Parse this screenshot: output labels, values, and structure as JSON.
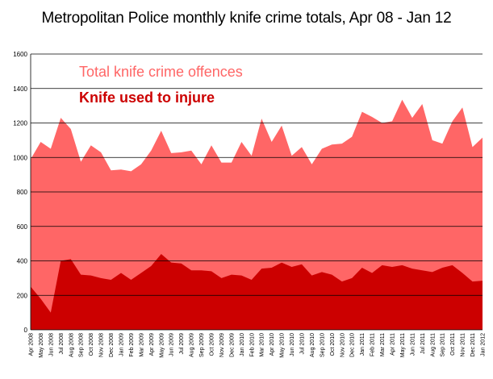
{
  "chart_data": {
    "type": "area",
    "title": "Metropolitan Police monthly knife crime totals, Apr 08 - Jan 12",
    "xlabel": "",
    "ylabel": "",
    "ylim": [
      0,
      1600
    ],
    "yticks": [
      0,
      200,
      400,
      600,
      800,
      1000,
      1200,
      1400,
      1600
    ],
    "grid": true,
    "legend_position": "top-left",
    "categories": [
      "Apr 2008",
      "May 2008",
      "Jun 2008",
      "Jul 2008",
      "Aug 2008",
      "Sep 2008",
      "Oct 2008",
      "Nov 2008",
      "Dec 2008",
      "Jan 2009",
      "Feb 2009",
      "Mar 2009",
      "Apr 2009",
      "May 2009",
      "Jun 2009",
      "Jul 2009",
      "Aug 2009",
      "Sep 2009",
      "Oct 2009",
      "Nov 2009",
      "Dec 2009",
      "Jan 2010",
      "Feb 2010",
      "Mar 2010",
      "Apr 2010",
      "May 2010",
      "Jun 2010",
      "Jul 2010",
      "Aug 2010",
      "Sep 2010",
      "Oct 2010",
      "Nov 2010",
      "Dec 2010",
      "Jan 2011",
      "Feb 2011",
      "Mar 2011",
      "Apr 2011",
      "May 2011",
      "Jun 2011",
      "Jul 2011",
      "Aug 2011",
      "Sep 2011",
      "Oct 2011",
      "Nov 2011",
      "Dec 2011",
      "Jan 2012"
    ],
    "series": [
      {
        "name": "Total knife crime offences",
        "color": "#ff6666",
        "values": [
          990,
          1090,
          1050,
          1230,
          1165,
          975,
          1070,
          1030,
          925,
          930,
          920,
          960,
          1040,
          1155,
          1025,
          1030,
          1040,
          960,
          1070,
          970,
          970,
          1090,
          1010,
          1225,
          1090,
          1185,
          1010,
          1060,
          960,
          1050,
          1075,
          1080,
          1120,
          1265,
          1235,
          1200,
          1210,
          1335,
          1230,
          1310,
          1100,
          1080,
          1210,
          1290,
          1060,
          1115
        ]
      },
      {
        "name": "Knife used to injure",
        "color": "#cc0000",
        "values": [
          250,
          180,
          100,
          400,
          410,
          320,
          315,
          300,
          290,
          330,
          290,
          330,
          370,
          440,
          390,
          385,
          345,
          345,
          340,
          300,
          320,
          315,
          290,
          355,
          360,
          390,
          365,
          380,
          315,
          335,
          320,
          280,
          300,
          360,
          330,
          375,
          365,
          375,
          355,
          345,
          335,
          360,
          375,
          330,
          280,
          285
        ]
      }
    ]
  }
}
